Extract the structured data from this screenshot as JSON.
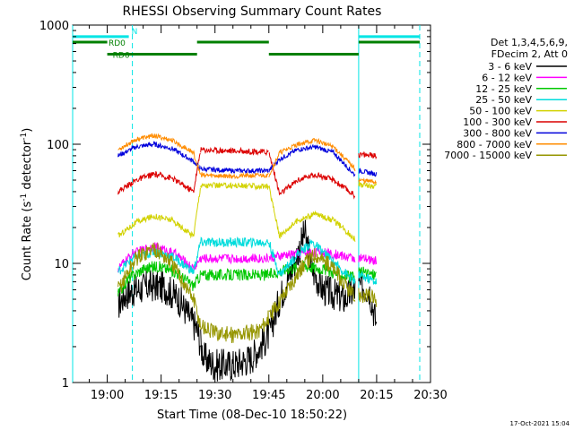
{
  "chart_data": {
    "type": "line",
    "title": "RHESSI Observing Summary Count Rates",
    "xlabel": "Start Time (08-Dec-10 18:50:22)",
    "ylabel": "Count Rate (s⁻¹ detector⁻¹)",
    "ylabel_parts": [
      "Count Rate (s",
      "-1",
      " detector",
      "-1",
      ")"
    ],
    "xlim": [
      "18:50:22",
      "20:30:00"
    ],
    "ylim": [
      1,
      1000
    ],
    "yscale": "log",
    "x_ticks": [
      "19:00",
      "19:15",
      "19:30",
      "19:45",
      "20:00",
      "20:15",
      "20:30"
    ],
    "y_ticks": [
      {
        "label": "1",
        "value": 1
      },
      {
        "label": "10",
        "value": 10
      },
      {
        "label": "100",
        "value": 100
      },
      {
        "label": "1000",
        "value": 1000
      }
    ],
    "legend_header": [
      "Det 1,3,4,5,6,9,",
      "FDecim 2, Att 0"
    ],
    "legend_position": "right",
    "timestamp": "17-Oct-2021 15:04",
    "vertical_lines": [
      {
        "time": "18:50:22",
        "style": "solid",
        "color": "#00e5e5"
      },
      {
        "time": "19:07:00",
        "style": "dashed",
        "color": "#00e5e5"
      },
      {
        "time": "20:10:00",
        "style": "solid",
        "color": "#00e5e5"
      },
      {
        "time": "20:27:00",
        "style": "dashed",
        "color": "#00e5e5"
      }
    ],
    "flag_bars": [
      {
        "label": "N",
        "color": "#00e5e5",
        "y": 800,
        "segments": [
          [
            "18:50:22",
            "19:06:00"
          ],
          [
            "20:10:00",
            "20:27:00"
          ]
        ]
      },
      {
        "label": "RD0",
        "color": "#008000",
        "y": 720,
        "segments": [
          [
            "18:50:22",
            "19:00:00"
          ],
          [
            "19:25:00",
            "19:45:00"
          ],
          [
            "20:10:00",
            "20:27:00"
          ]
        ]
      },
      {
        "label": "RD6",
        "color": "#008000",
        "y": 570,
        "segments": [
          [
            "19:00:00",
            "19:25:00"
          ],
          [
            "19:45:00",
            "20:10:00"
          ]
        ]
      }
    ],
    "segments": [
      [
        "19:03:00",
        "19:26:00"
      ],
      [
        "19:26:00",
        "19:45:00"
      ],
      [
        "19:45:00",
        "20:09:00"
      ],
      [
        "20:10:00",
        "20:15:00"
      ]
    ],
    "series": [
      {
        "name": "3 - 6 keV",
        "color": "#000000",
        "noise": 0.14,
        "points": [
          [
            "19:03",
            4.5
          ],
          [
            "19:05",
            5.5
          ],
          [
            "19:08",
            6
          ],
          [
            "19:12",
            6.5
          ],
          [
            "19:16",
            6.3
          ],
          [
            "19:20",
            5
          ],
          [
            "19:23",
            3.5
          ],
          [
            "19:25",
            2.8
          ],
          [
            "19:27",
            1.6
          ],
          [
            "19:30",
            1.4
          ],
          [
            "19:35",
            1.4
          ],
          [
            "19:40",
            1.6
          ],
          [
            "19:45",
            2.5
          ],
          [
            "19:48",
            5
          ],
          [
            "19:52",
            10
          ],
          [
            "19:55",
            18
          ],
          [
            "19:57",
            9
          ],
          [
            "20:00",
            6
          ],
          [
            "20:03",
            5.5
          ],
          [
            "20:06",
            5
          ],
          [
            "20:09",
            6
          ],
          [
            "20:11",
            6.5
          ],
          [
            "20:13",
            6
          ],
          [
            "20:15",
            3
          ]
        ]
      },
      {
        "name": "6 - 12 keV",
        "color": "#ff00ff",
        "noise": 0.04,
        "points": [
          [
            "19:03",
            9
          ],
          [
            "19:07",
            12
          ],
          [
            "19:13",
            14
          ],
          [
            "19:19",
            12
          ],
          [
            "19:24",
            9
          ],
          [
            "19:26",
            11
          ],
          [
            "19:35",
            11
          ],
          [
            "19:45",
            11
          ],
          [
            "19:52",
            12
          ],
          [
            "19:58",
            12.5
          ],
          [
            "20:03",
            12
          ],
          [
            "20:09",
            11
          ],
          [
            "20:10",
            11
          ],
          [
            "20:15",
            10.5
          ]
        ]
      },
      {
        "name": "12 - 25 keV",
        "color": "#00c800",
        "noise": 0.05,
        "points": [
          [
            "19:03",
            5.5
          ],
          [
            "19:06",
            7.5
          ],
          [
            "19:10",
            9
          ],
          [
            "19:14",
            9.5
          ],
          [
            "19:19",
            8.5
          ],
          [
            "19:24",
            6.5
          ],
          [
            "19:26",
            8
          ],
          [
            "19:35",
            8
          ],
          [
            "19:45",
            8
          ],
          [
            "19:50",
            9
          ],
          [
            "19:55",
            9.5
          ],
          [
            "20:00",
            9
          ],
          [
            "20:05",
            8
          ],
          [
            "20:09",
            7.5
          ],
          [
            "20:10",
            8.5
          ],
          [
            "20:15",
            8
          ]
        ]
      },
      {
        "name": "25 - 50 keV",
        "color": "#00dcdc",
        "noise": 0.04,
        "points": [
          [
            "19:03",
            8.5
          ],
          [
            "19:07",
            11
          ],
          [
            "19:13",
            12.5
          ],
          [
            "19:18",
            11.5
          ],
          [
            "19:24",
            8.5
          ],
          [
            "19:26",
            15
          ],
          [
            "19:35",
            15
          ],
          [
            "19:45",
            15
          ],
          [
            "19:48",
            8
          ],
          [
            "19:53",
            12
          ],
          [
            "19:57",
            15
          ],
          [
            "20:00",
            12.5
          ],
          [
            "20:05",
            9
          ],
          [
            "20:09",
            7
          ],
          [
            "20:10",
            8
          ],
          [
            "20:15",
            7
          ]
        ]
      },
      {
        "name": "50 - 100 keV",
        "color": "#d2d200",
        "noise": 0.025,
        "points": [
          [
            "19:03",
            17
          ],
          [
            "19:08",
            22
          ],
          [
            "19:13",
            25
          ],
          [
            "19:18",
            23
          ],
          [
            "19:24",
            17
          ],
          [
            "19:26",
            45
          ],
          [
            "19:35",
            45
          ],
          [
            "19:45",
            44
          ],
          [
            "19:48",
            17
          ],
          [
            "19:53",
            23
          ],
          [
            "19:58",
            26
          ],
          [
            "20:03",
            23
          ],
          [
            "20:09",
            16
          ],
          [
            "20:10",
            46
          ],
          [
            "20:15",
            44
          ]
        ]
      },
      {
        "name": "100 - 300 keV",
        "color": "#dc0000",
        "noise": 0.025,
        "points": [
          [
            "19:03",
            40
          ],
          [
            "19:08",
            50
          ],
          [
            "19:13",
            56
          ],
          [
            "19:18",
            52
          ],
          [
            "19:24",
            40
          ],
          [
            "19:26",
            90
          ],
          [
            "19:35",
            88
          ],
          [
            "19:45",
            86
          ],
          [
            "19:48",
            38
          ],
          [
            "19:53",
            50
          ],
          [
            "19:58",
            56
          ],
          [
            "20:03",
            50
          ],
          [
            "20:09",
            37
          ],
          [
            "20:10",
            82
          ],
          [
            "20:15",
            80
          ]
        ]
      },
      {
        "name": "300 - 800 keV",
        "color": "#0000dc",
        "noise": 0.02,
        "points": [
          [
            "19:03",
            80
          ],
          [
            "19:08",
            95
          ],
          [
            "19:13",
            100
          ],
          [
            "19:18",
            92
          ],
          [
            "19:24",
            72
          ],
          [
            "19:26",
            62
          ],
          [
            "19:35",
            60
          ],
          [
            "19:45",
            60
          ],
          [
            "19:48",
            75
          ],
          [
            "19:53",
            90
          ],
          [
            "19:58",
            95
          ],
          [
            "20:03",
            85
          ],
          [
            "20:09",
            55
          ],
          [
            "20:10",
            60
          ],
          [
            "20:15",
            56
          ]
        ]
      },
      {
        "name": "800 - 7000 keV",
        "color": "#ff8c00",
        "noise": 0.02,
        "points": [
          [
            "19:03",
            90
          ],
          [
            "19:08",
            110
          ],
          [
            "19:13",
            118
          ],
          [
            "19:18",
            108
          ],
          [
            "19:24",
            85
          ],
          [
            "19:26",
            55
          ],
          [
            "19:35",
            54
          ],
          [
            "19:45",
            55
          ],
          [
            "19:48",
            85
          ],
          [
            "19:53",
            100
          ],
          [
            "19:58",
            108
          ],
          [
            "20:03",
            95
          ],
          [
            "20:09",
            62
          ],
          [
            "20:10",
            50
          ],
          [
            "20:15",
            48
          ]
        ]
      },
      {
        "name": "7000 - 15000 keV",
        "color": "#969600",
        "noise": 0.07,
        "points": [
          [
            "19:03",
            6
          ],
          [
            "19:08",
            11
          ],
          [
            "19:13",
            13.5
          ],
          [
            "19:18",
            10
          ],
          [
            "19:24",
            5
          ],
          [
            "19:26",
            3
          ],
          [
            "19:30",
            2.6
          ],
          [
            "19:35",
            2.5
          ],
          [
            "19:42",
            2.7
          ],
          [
            "19:45",
            3.5
          ],
          [
            "19:50",
            6
          ],
          [
            "19:55",
            10
          ],
          [
            "19:58",
            12
          ],
          [
            "20:03",
            9
          ],
          [
            "20:09",
            5
          ],
          [
            "20:10",
            5.5
          ],
          [
            "20:15",
            5
          ]
        ]
      }
    ]
  }
}
